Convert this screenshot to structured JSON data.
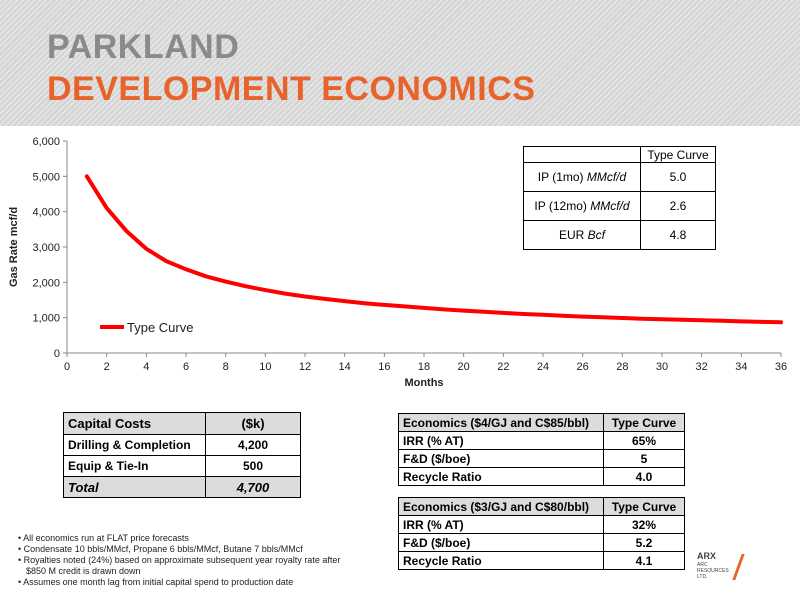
{
  "header": {
    "title_line1": "PARKLAND",
    "title_line2": "DEVELOPMENT ECONOMICS"
  },
  "colors": {
    "title_gray": "#8a8a8a",
    "title_orange": "#e8632b",
    "series_red": "#ff0000"
  },
  "chart_data": {
    "type": "line",
    "xlabel": "Months",
    "ylabel": "Gas Rate mcf/d",
    "xlim": [
      0,
      36
    ],
    "ylim": [
      0,
      6000
    ],
    "xticks": [
      0,
      2,
      4,
      6,
      8,
      10,
      12,
      14,
      16,
      18,
      20,
      22,
      24,
      26,
      28,
      30,
      32,
      34,
      36
    ],
    "yticks": [
      0,
      1000,
      2000,
      3000,
      4000,
      5000,
      6000
    ],
    "ytick_labels": [
      "0",
      "1,000",
      "2,000",
      "3,000",
      "4,000",
      "5,000",
      "6,000"
    ],
    "grid": false,
    "legend_position": "bottom-left",
    "series": [
      {
        "name": "Type Curve",
        "x": [
          1,
          2,
          3,
          4,
          5,
          6,
          7,
          8,
          9,
          10,
          11,
          12,
          13,
          14,
          15,
          16,
          17,
          18,
          19,
          20,
          21,
          22,
          23,
          24,
          25,
          26,
          27,
          28,
          29,
          30,
          31,
          32,
          33,
          34,
          35,
          36
        ],
        "y": [
          5000,
          4100,
          3450,
          2950,
          2600,
          2370,
          2170,
          2020,
          1890,
          1780,
          1680,
          1600,
          1530,
          1470,
          1410,
          1360,
          1320,
          1275,
          1235,
          1200,
          1165,
          1135,
          1105,
          1080,
          1055,
          1030,
          1010,
          990,
          970,
          955,
          940,
          925,
          910,
          895,
          880,
          870
        ]
      }
    ]
  },
  "type_curve_table": {
    "header": "Type Curve",
    "rows": [
      {
        "label": "IP (1mo)",
        "unit": "MMcf/d",
        "value": "5.0"
      },
      {
        "label": "IP (12mo)",
        "unit": "MMcf/d",
        "value": "2.6"
      },
      {
        "label": "EUR",
        "unit": "Bcf",
        "value": "4.8"
      }
    ]
  },
  "capital_costs": {
    "header_label": "Capital Costs",
    "header_value": "($k)",
    "rows": [
      {
        "label": "Drilling & Completion",
        "value": "4,200"
      },
      {
        "label": "Equip & Tie-In",
        "value": "500"
      }
    ],
    "total_label": "Total",
    "total_value": "4,700"
  },
  "economics_1": {
    "header_label": "Economics ($4/GJ and C$85/bbl)",
    "header_value": "Type Curve",
    "rows": [
      {
        "label": "IRR (% AT)",
        "value": "65%"
      },
      {
        "label": "F&D ($/boe)",
        "value": "5"
      },
      {
        "label": "Recycle Ratio",
        "value": "4.0"
      }
    ]
  },
  "economics_2": {
    "header_label": "Economics ($3/GJ and C$80/bbl)",
    "header_value": "Type Curve",
    "rows": [
      {
        "label": "IRR (% AT)",
        "value": "32%"
      },
      {
        "label": "F&D ($/boe)",
        "value": "5.2"
      },
      {
        "label": "Recycle Ratio",
        "value": "4.1"
      }
    ]
  },
  "notes": [
    "• All economics run at FLAT price forecasts",
    "• Condensate 10 bbls/MMcf,  Propane 6 bbls/MMcf, Butane 7 bbls/MMcf",
    "• Royalties noted (24%) based on approximate subsequent year royalty rate after",
    "  $850 M credit is drawn down",
    "• Assumes one month lag from initial capital spend to production date"
  ],
  "logo": {
    "name": "ARX",
    "subtext": "ARC RESOURCES LTD."
  }
}
